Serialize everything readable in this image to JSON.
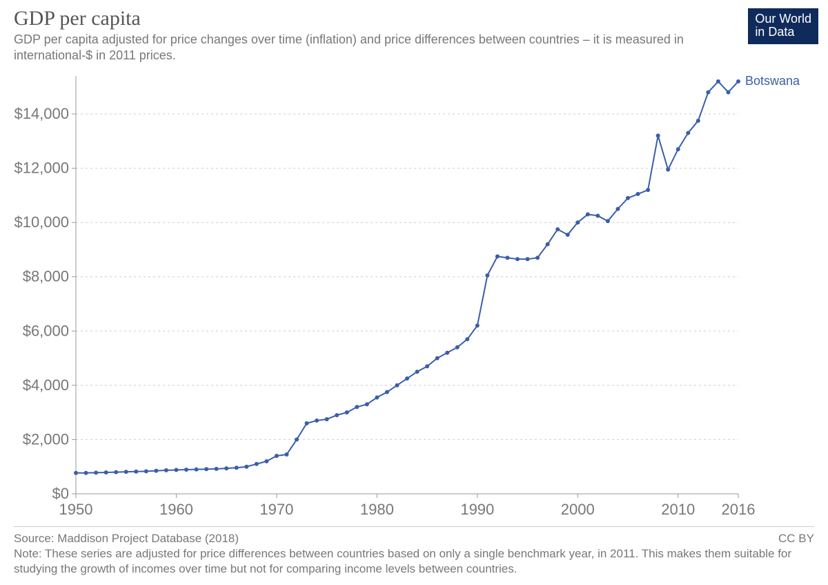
{
  "header": {
    "title": "GDP per capita",
    "subtitle": "GDP per capita adjusted for price changes over time (inflation) and price differences between countries – it is measured in international-$ in 2011 prices."
  },
  "logo": {
    "line1": "Our World",
    "line2": "in Data",
    "bg": "#0f2b5b",
    "fg": "#ffffff"
  },
  "footer": {
    "source": "Source: Maddison Project Database (2018)",
    "note": "Note: These series are adjusted for price differences between countries based on only a single benchmark year, in 2011. This makes them suitable for studying the growth of incomes over time but not for comparing income levels between countries.",
    "license": "CC BY"
  },
  "chart": {
    "type": "line",
    "background_color": "#ffffff",
    "grid_color": "#cccccc",
    "axis_color": "#999999",
    "axis_label_color": "#777777",
    "axis_fontsize": 22,
    "x": {
      "min": 1950,
      "max": 2016,
      "ticks": [
        1950,
        1960,
        1970,
        1980,
        1990,
        2000,
        2010,
        2016
      ],
      "tick_labels": [
        "1950",
        "1960",
        "1970",
        "1980",
        "1990",
        "2000",
        "2010",
        "2016"
      ]
    },
    "y": {
      "min": 0,
      "max": 15400,
      "ticks": [
        0,
        2000,
        4000,
        6000,
        8000,
        10000,
        12000,
        14000
      ],
      "tick_labels": [
        "$0",
        "$2,000",
        "$4,000",
        "$6,000",
        "$8,000",
        "$10,000",
        "$12,000",
        "$14,000"
      ]
    },
    "series": [
      {
        "name": "Botswana",
        "label": "Botswana",
        "color": "#3a5ea8",
        "line_width": 2,
        "marker_radius": 3,
        "years": [
          1950,
          1951,
          1952,
          1953,
          1954,
          1955,
          1956,
          1957,
          1958,
          1959,
          1960,
          1961,
          1962,
          1963,
          1964,
          1965,
          1966,
          1967,
          1968,
          1969,
          1970,
          1971,
          1972,
          1973,
          1974,
          1975,
          1976,
          1977,
          1978,
          1979,
          1980,
          1981,
          1982,
          1983,
          1984,
          1985,
          1986,
          1987,
          1988,
          1989,
          1990,
          1991,
          1992,
          1993,
          1994,
          1995,
          1996,
          1997,
          1998,
          1999,
          2000,
          2001,
          2002,
          2003,
          2004,
          2005,
          2006,
          2007,
          2008,
          2009,
          2010,
          2011,
          2012,
          2013,
          2014,
          2015,
          2016
        ],
        "values": [
          770,
          770,
          780,
          790,
          800,
          810,
          820,
          830,
          850,
          870,
          880,
          890,
          900,
          910,
          920,
          940,
          960,
          1000,
          1100,
          1200,
          1400,
          1450,
          2000,
          2600,
          2700,
          2750,
          2900,
          3000,
          3200,
          3300,
          3550,
          3750,
          4000,
          4250,
          4500,
          4700,
          5000,
          5200,
          5400,
          5700,
          6200,
          8050,
          8750,
          8700,
          8650,
          8650,
          8700,
          9200,
          9750,
          9550,
          10000,
          10300,
          10250,
          10050,
          10500,
          10900,
          11050,
          11200,
          13200,
          11950,
          12700,
          13300,
          13750,
          14800,
          15200,
          14800,
          15200
        ]
      }
    ]
  }
}
